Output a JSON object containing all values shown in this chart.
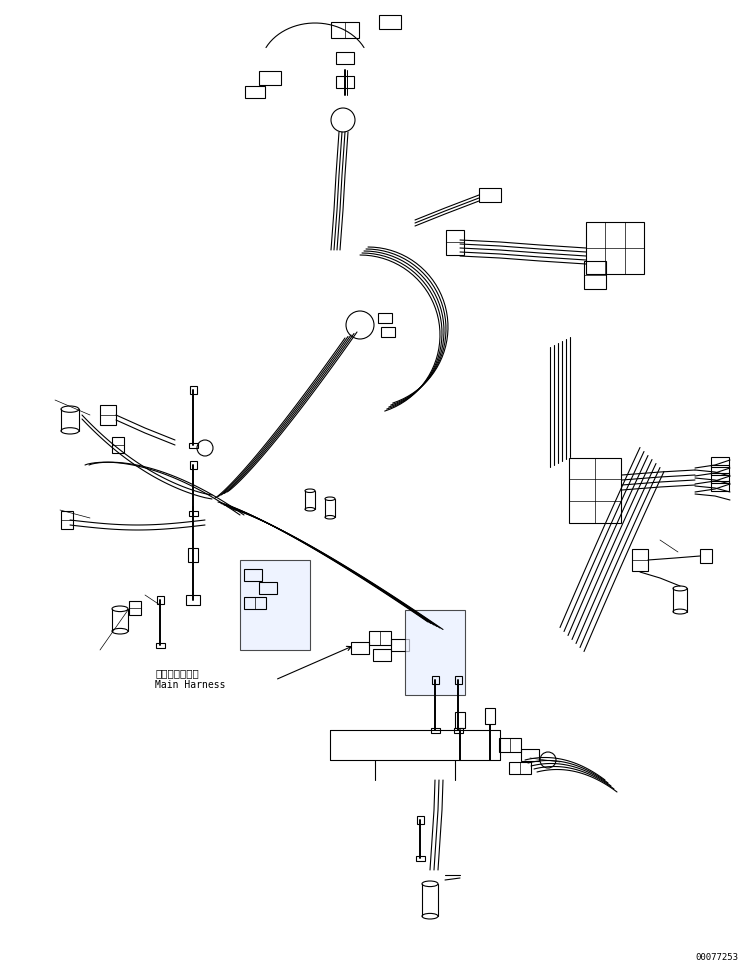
{
  "figure_width": 7.55,
  "figure_height": 9.76,
  "dpi": 100,
  "background_color": "#ffffff",
  "line_color": "#000000",
  "label_japanese": "メインハーネス",
  "label_english": "Main Harness",
  "doc_number": "00077253",
  "lw": 0.8,
  "tlw": 0.5,
  "thw": 1.4
}
